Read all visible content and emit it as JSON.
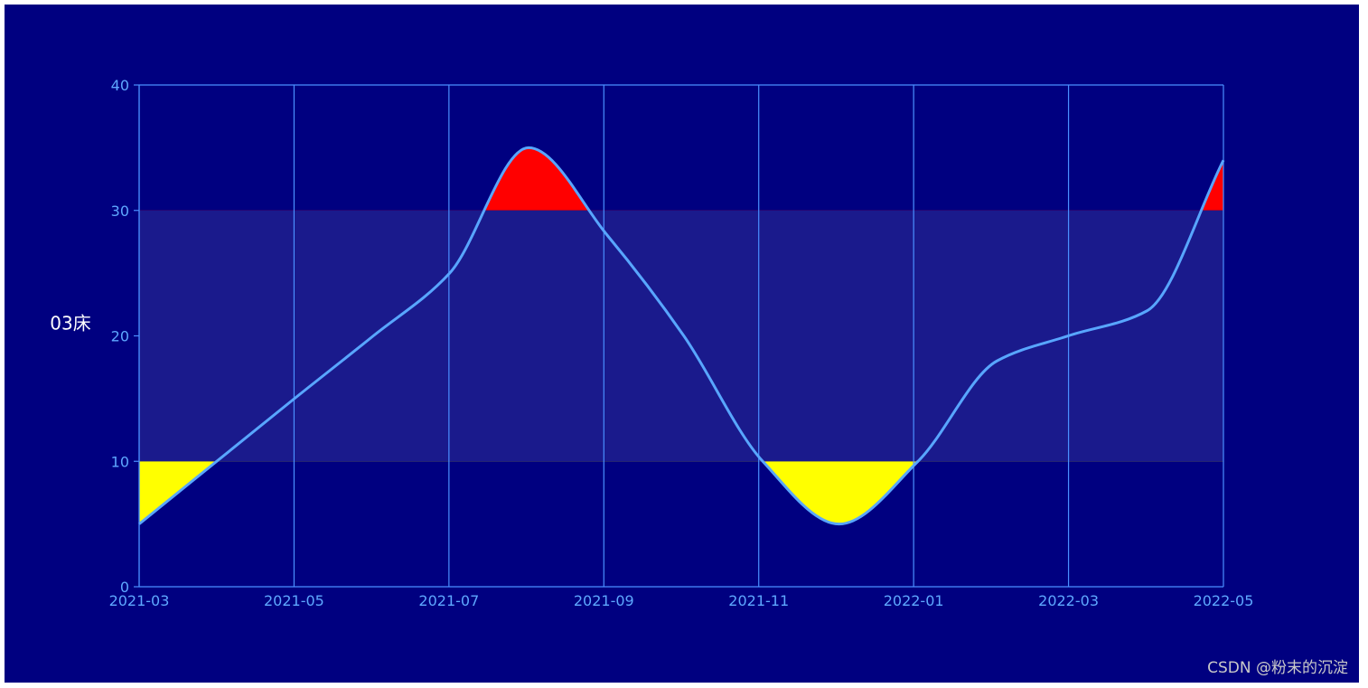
{
  "chart_data": {
    "type": "line",
    "ylabel": "03床",
    "x_ticks": [
      "2021-03",
      "2021-05",
      "2021-07",
      "2021-09",
      "2021-11",
      "2022-01",
      "2022-03",
      "2022-05"
    ],
    "y_ticks": [
      "0",
      "10",
      "20",
      "30",
      "40"
    ],
    "ylim": [
      0,
      40
    ],
    "xlim": [
      "2021-03-01",
      "2022-05-01"
    ],
    "grid": true,
    "normal_band": [
      10,
      30
    ],
    "series": [
      {
        "points": [
          {
            "x": "2021-03-01",
            "y": 5
          },
          {
            "x": "2021-05-01",
            "y": 15
          },
          {
            "x": "2021-06-01",
            "y": 20
          },
          {
            "x": "2021-07-01",
            "y": 25
          },
          {
            "x": "2021-08-01",
            "y": 35
          },
          {
            "x": "2021-09-01",
            "y": 28
          },
          {
            "x": "2021-10-01",
            "y": 20
          },
          {
            "x": "2021-11-01",
            "y": 10
          },
          {
            "x": "2021-12-01",
            "y": 5
          },
          {
            "x": "2022-01-01",
            "y": 10
          },
          {
            "x": "2022-02-01",
            "y": 18
          },
          {
            "x": "2022-03-01",
            "y": 20
          },
          {
            "x": "2022-04-01",
            "y": 22
          },
          {
            "x": "2022-05-01",
            "y": 34
          }
        ]
      }
    ]
  },
  "colors": {
    "background": "#000080",
    "band": "#1a1a8c",
    "grid": "#4a90ff",
    "axis_text": "#5ea8ff",
    "line": "#58a6ff",
    "above_fill": "#ff0000",
    "below_fill": "#ffff00",
    "ylabel": "#ffffff"
  },
  "watermark": "CSDN @粉末的沉淀"
}
